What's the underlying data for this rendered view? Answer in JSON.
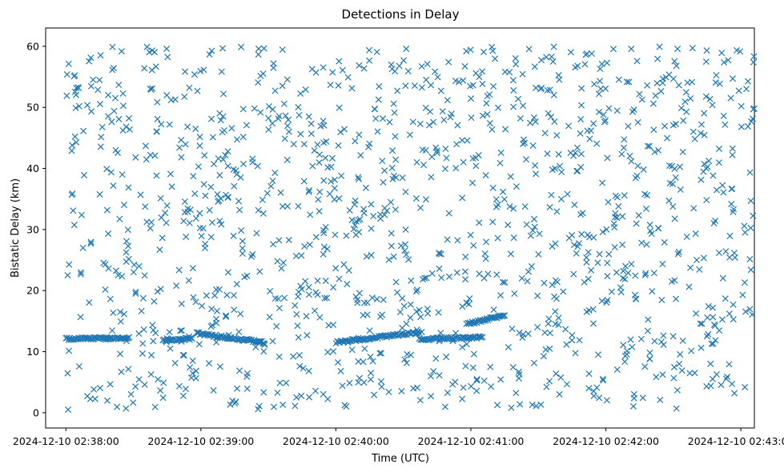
{
  "chart_data": {
    "type": "scatter",
    "title": "Detections in Delay",
    "xlabel": "Time (UTC)",
    "ylabel": "Bistatic Delay (km)",
    "marker": "x",
    "color": "#1f77b4",
    "grid": false,
    "xlim": [
      "2024-12-10 02:37:51",
      "2024-12-10 02:43:06"
    ],
    "ylim": [
      -2.5,
      63
    ],
    "x_ticks": [
      "2024-12-10 02:38:00",
      "2024-12-10 02:39:00",
      "2024-12-10 02:40:00",
      "2024-12-10 02:41:00",
      "2024-12-10 02:42:00",
      "2024-12-10 02:43:00"
    ],
    "y_ticks": [
      "0",
      "10",
      "20",
      "30",
      "40",
      "50",
      "60"
    ],
    "y_tick_values": [
      0,
      10,
      20,
      30,
      40,
      50,
      60
    ],
    "tracks": [
      {
        "start": "2024-12-10 02:38:00",
        "end": "2024-12-10 02:38:28",
        "delay_start": 12.1,
        "delay_end": 12.2
      },
      {
        "start": "2024-12-10 02:38:43",
        "end": "2024-12-10 02:38:56",
        "delay_start": 11.9,
        "delay_end": 12.1
      },
      {
        "start": "2024-12-10 02:38:58",
        "end": "2024-12-10 02:39:28",
        "delay_start": 13.0,
        "delay_end": 11.5
      },
      {
        "start": "2024-12-10 02:40:00",
        "end": "2024-12-10 02:40:37",
        "delay_start": 11.5,
        "delay_end": 13.2
      },
      {
        "start": "2024-12-10 02:40:37",
        "end": "2024-12-10 02:41:05",
        "delay_start": 12.0,
        "delay_end": 12.4
      },
      {
        "start": "2024-12-10 02:40:58",
        "end": "2024-12-10 02:41:15",
        "delay_start": 14.5,
        "delay_end": 16.0
      }
    ],
    "clutter": {
      "start": "2024-12-10 02:38:00",
      "end": "2024-12-10 02:43:06",
      "delay_min": 0.5,
      "delay_max": 60,
      "count": 1300
    }
  }
}
